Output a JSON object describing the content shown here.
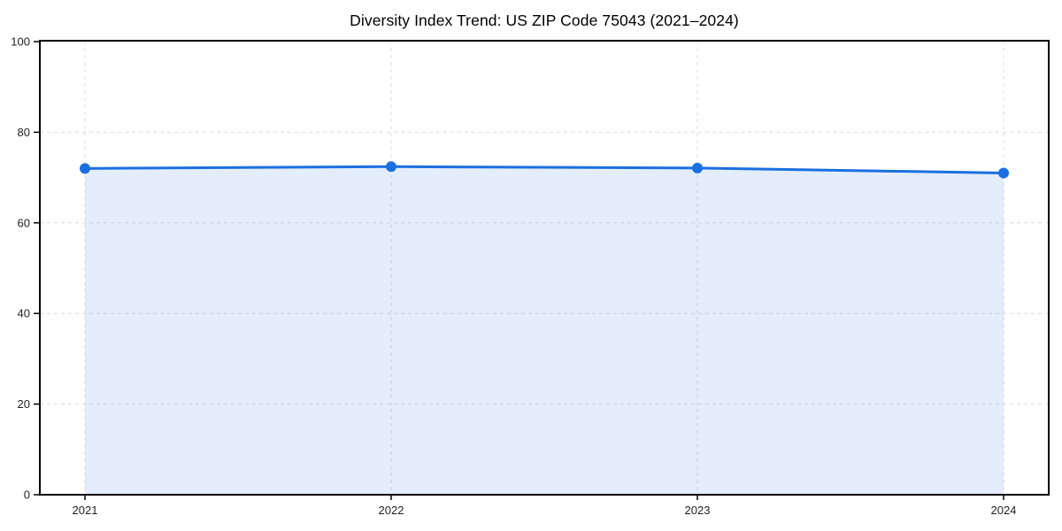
{
  "chart_data": {
    "type": "line",
    "title": "Diversity Index Trend: US ZIP Code 75043 (2021–2024)",
    "categories": [
      "2021",
      "2022",
      "2023",
      "2024"
    ],
    "x": [
      2021,
      2022,
      2023,
      2024
    ],
    "series": [
      {
        "name": "Diversity Index",
        "values": [
          72.0,
          72.4,
          72.1,
          71.0
        ]
      }
    ],
    "xlabel": "",
    "ylabel": "",
    "ylim": [
      0,
      100
    ],
    "y_ticks": [
      0,
      20,
      40,
      60,
      80,
      100
    ],
    "grid": true,
    "grid_style": "dashed",
    "legend": "none",
    "marker": "circle",
    "area_fill": true
  },
  "colors": {
    "line": "#1b6fe0",
    "marker": "#1b6fe0",
    "area_fill": "rgba(27, 111, 224, 0.12)",
    "grid": "#dcdcdc",
    "spine": "#000000",
    "tick_text": "#1f1f1f",
    "title_text": "#000000",
    "background": "#ffffff"
  }
}
